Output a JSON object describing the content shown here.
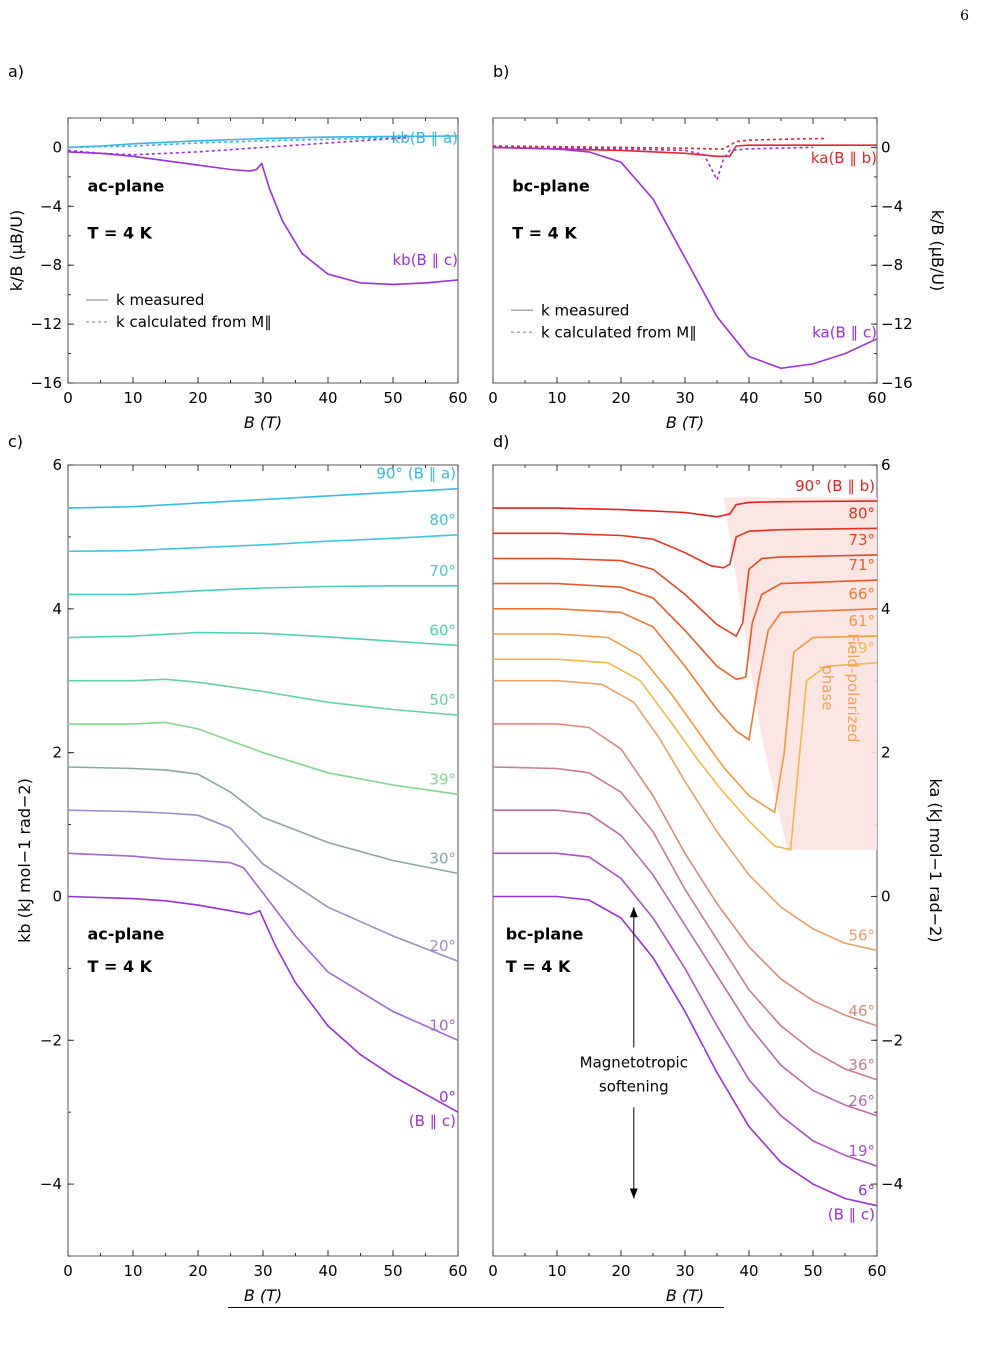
{
  "page_number": "6",
  "chart_data": [
    {
      "panel": "a)",
      "type": "line",
      "xlabel": "B (T)",
      "ylabel": "k/B (μB/U)",
      "xlim": [
        0,
        60
      ],
      "ylim": [
        -16,
        2
      ],
      "xticks": [
        "0",
        "10",
        "20",
        "30",
        "40",
        "50",
        "60"
      ],
      "yticks": [
        "0",
        "−4",
        "−8",
        "−12",
        "−16"
      ],
      "annotations": [
        "ac-plane",
        "T = 4 K"
      ],
      "legend": [
        "k measured",
        "k calculated from M∥"
      ],
      "legend_position": "bottom-left",
      "series": [
        {
          "name": "kb(B ∥ a)",
          "color": "#36b7e6",
          "style": "solid",
          "x": [
            0,
            5,
            10,
            20,
            30,
            40,
            50,
            60
          ],
          "y": [
            0,
            0.1,
            0.25,
            0.45,
            0.6,
            0.7,
            0.75,
            0.78
          ]
        },
        {
          "name": "",
          "color": "#36b7e6",
          "style": "dashed",
          "x": [
            0,
            10,
            20,
            30,
            40,
            50,
            52
          ],
          "y": [
            0,
            0.1,
            0.3,
            0.45,
            0.55,
            0.65,
            0.68
          ]
        },
        {
          "name": "kb(B ∥ c)",
          "color": "#9b30d9",
          "style": "solid",
          "x": [
            0,
            5,
            10,
            15,
            20,
            25,
            28,
            29,
            29.8,
            31,
            33,
            36,
            40,
            45,
            50,
            55,
            60
          ],
          "y": [
            -0.3,
            -0.4,
            -0.6,
            -0.9,
            -1.2,
            -1.5,
            -1.6,
            -1.5,
            -1.1,
            -2.8,
            -5,
            -7.2,
            -8.6,
            -9.2,
            -9.3,
            -9.2,
            -9.0
          ]
        },
        {
          "name": "",
          "color": "#9b30d9",
          "style": "dashed",
          "x": [
            0,
            5,
            10,
            20,
            30,
            40,
            50,
            52
          ],
          "y": [
            -0.2,
            -0.4,
            -0.5,
            -0.3,
            0,
            0.3,
            0.6,
            0.65
          ]
        }
      ]
    },
    {
      "panel": "b)",
      "type": "line",
      "xlabel": "B (T)",
      "ylabel": "k/B (μB/U)",
      "xlim": [
        0,
        60
      ],
      "ylim": [
        -16,
        2
      ],
      "xticks": [
        "0",
        "10",
        "20",
        "30",
        "40",
        "50",
        "60"
      ],
      "yticks": [
        "0",
        "−4",
        "−8",
        "−12",
        "−16"
      ],
      "annotations": [
        "bc-plane",
        "T = 4 K"
      ],
      "legend": [
        "k measured",
        "k calculated from M∥"
      ],
      "legend_position": "bottom-left",
      "series": [
        {
          "name": "ka(B ∥ b)",
          "color": "#e6242b",
          "style": "solid",
          "x": [
            0,
            10,
            20,
            30,
            35,
            37,
            38,
            40,
            45,
            60
          ],
          "y": [
            0,
            -0.1,
            -0.2,
            -0.4,
            -0.6,
            -0.6,
            0.1,
            0.15,
            0.15,
            0.15
          ]
        },
        {
          "name": "",
          "color": "#e6242b",
          "style": "dashed",
          "x": [
            0,
            10,
            20,
            30,
            34,
            36,
            38,
            40,
            45,
            50,
            52
          ],
          "y": [
            0.1,
            0.05,
            0,
            -0.05,
            -0.1,
            -0.1,
            0.4,
            0.5,
            0.55,
            0.6,
            0.6
          ]
        },
        {
          "name": "ka(B ∥ c)",
          "color": "#9b30d9",
          "style": "solid",
          "x": [
            0,
            10,
            15,
            20,
            25,
            30,
            35,
            40,
            45,
            50,
            55,
            60
          ],
          "y": [
            0,
            -0.1,
            -0.3,
            -1,
            -3.5,
            -7.5,
            -11.5,
            -14.2,
            -15,
            -14.7,
            -14,
            -13
          ]
        },
        {
          "name": "",
          "color": "#9b30d9",
          "style": "dashed",
          "x": [
            0,
            10,
            20,
            30,
            33,
            35,
            36,
            37,
            40,
            50
          ],
          "y": [
            0,
            -0.05,
            -0.1,
            -0.2,
            -0.5,
            -2.2,
            -0.8,
            -0.2,
            -0.1,
            0
          ]
        }
      ]
    },
    {
      "panel": "c)",
      "type": "line",
      "xlabel": "B (T)",
      "ylabel": "kb (kJ mol−1 rad−2)",
      "xlim": [
        0,
        60
      ],
      "ylim": [
        -5,
        6
      ],
      "xticks": [
        "0",
        "10",
        "20",
        "30",
        "40",
        "50",
        "60"
      ],
      "yticks": [
        "6",
        "4",
        "2",
        "0",
        "−2",
        "−4"
      ],
      "annotations": [
        "ac-plane",
        "T = 4 K"
      ],
      "series": [
        {
          "name": "90° (B ∥ a)",
          "color": "#33bde6",
          "x": [
            0,
            10,
            20,
            30,
            40,
            50,
            60
          ],
          "y": [
            5.4,
            5.42,
            5.47,
            5.52,
            5.57,
            5.62,
            5.67
          ]
        },
        {
          "name": "80°",
          "color": "#41c5dc",
          "x": [
            0,
            10,
            20,
            30,
            40,
            50,
            60
          ],
          "y": [
            4.8,
            4.81,
            4.85,
            4.89,
            4.94,
            4.98,
            5.03
          ]
        },
        {
          "name": "70°",
          "color": "#47ccc5",
          "x": [
            0,
            10,
            20,
            30,
            40,
            50,
            60
          ],
          "y": [
            4.2,
            4.2,
            4.25,
            4.29,
            4.31,
            4.32,
            4.32
          ]
        },
        {
          "name": "60°",
          "color": "#4fd1b3",
          "x": [
            0,
            10,
            20,
            30,
            40,
            50,
            60
          ],
          "y": [
            3.6,
            3.62,
            3.67,
            3.66,
            3.61,
            3.55,
            3.49
          ]
        },
        {
          "name": "50°",
          "color": "#66d39f",
          "x": [
            0,
            10,
            15,
            20,
            30,
            40,
            50,
            60
          ],
          "y": [
            3.0,
            3.0,
            3.02,
            2.98,
            2.85,
            2.7,
            2.6,
            2.52
          ]
        },
        {
          "name": "39°",
          "color": "#80d68a",
          "x": [
            0,
            10,
            15,
            20,
            30,
            40,
            50,
            60
          ],
          "y": [
            2.4,
            2.4,
            2.42,
            2.33,
            2.0,
            1.72,
            1.55,
            1.42
          ]
        },
        {
          "name": "30°",
          "color": "#8aa6a4",
          "x": [
            0,
            10,
            15,
            20,
            25,
            30,
            40,
            50,
            60
          ],
          "y": [
            1.8,
            1.78,
            1.76,
            1.7,
            1.45,
            1.1,
            0.75,
            0.5,
            0.32
          ]
        },
        {
          "name": "20°",
          "color": "#9a8ec4",
          "x": [
            0,
            10,
            15,
            20,
            25,
            30,
            40,
            50,
            60
          ],
          "y": [
            1.2,
            1.18,
            1.16,
            1.13,
            0.95,
            0.45,
            -0.15,
            -0.55,
            -0.9
          ]
        },
        {
          "name": "10°",
          "color": "#a366d2",
          "x": [
            0,
            10,
            15,
            20,
            25,
            27,
            30,
            35,
            40,
            50,
            60
          ],
          "y": [
            0.6,
            0.56,
            0.52,
            0.5,
            0.47,
            0.4,
            0.05,
            -0.55,
            -1.05,
            -1.6,
            -2.0
          ]
        },
        {
          "name": "0° (B ∥ c)",
          "color": "#9b30d9",
          "x": [
            0,
            10,
            15,
            20,
            25,
            28,
            29.5,
            30,
            32,
            35,
            40,
            45,
            50,
            55,
            60
          ],
          "y": [
            0,
            -0.03,
            -0.06,
            -0.12,
            -0.2,
            -0.25,
            -0.2,
            -0.3,
            -0.7,
            -1.2,
            -1.8,
            -2.2,
            -2.5,
            -2.75,
            -3.0
          ]
        }
      ]
    },
    {
      "panel": "d)",
      "type": "line",
      "xlabel": "B (T)",
      "ylabel": "ka (kJ mol−1 rad−2)",
      "xlim": [
        0,
        60
      ],
      "ylim": [
        -5,
        6
      ],
      "xticks": [
        "0",
        "10",
        "20",
        "30",
        "40",
        "50",
        "60"
      ],
      "yticks": [
        "6",
        "4",
        "2",
        "0",
        "−2",
        "−4"
      ],
      "annotations": [
        "bc-plane",
        "T = 4 K",
        "Field-polarized phase",
        "Magnetotropic softening"
      ],
      "series": [
        {
          "name": "90° (B ∥ b)",
          "color": "#e3201f",
          "x": [
            0,
            10,
            20,
            30,
            35,
            37,
            38,
            40,
            45,
            60
          ],
          "y": [
            5.4,
            5.4,
            5.38,
            5.34,
            5.28,
            5.32,
            5.45,
            5.48,
            5.49,
            5.5
          ]
        },
        {
          "name": "80°",
          "color": "#e4321f",
          "x": [
            0,
            10,
            20,
            25,
            30,
            34,
            36,
            37,
            38,
            40,
            45,
            60
          ],
          "y": [
            5.05,
            5.05,
            5.02,
            4.97,
            4.78,
            4.6,
            4.57,
            4.62,
            5.0,
            5.08,
            5.1,
            5.12
          ]
        },
        {
          "name": "73°",
          "color": "#e54722",
          "x": [
            0,
            10,
            20,
            25,
            30,
            35,
            38,
            39,
            40,
            42,
            45,
            60
          ],
          "y": [
            4.7,
            4.7,
            4.67,
            4.55,
            4.2,
            3.78,
            3.62,
            3.8,
            4.55,
            4.7,
            4.72,
            4.75
          ]
        },
        {
          "name": "71°",
          "color": "#e75b26",
          "x": [
            0,
            10,
            20,
            25,
            30,
            35,
            38,
            39.5,
            40.5,
            42,
            45,
            60
          ],
          "y": [
            4.35,
            4.35,
            4.3,
            4.15,
            3.7,
            3.2,
            3.02,
            3.05,
            3.8,
            4.2,
            4.35,
            4.4
          ]
        },
        {
          "name": "66°",
          "color": "#ec7a33",
          "x": [
            0,
            10,
            20,
            25,
            30,
            35,
            38,
            40,
            41.5,
            43,
            45,
            60
          ],
          "y": [
            4.0,
            4.0,
            3.95,
            3.75,
            3.2,
            2.6,
            2.3,
            2.18,
            3.0,
            3.7,
            3.95,
            4.0
          ]
        },
        {
          "name": "61°",
          "color": "#f29a3d",
          "x": [
            0,
            10,
            18,
            23,
            28,
            32,
            36,
            40,
            44,
            45.5,
            47,
            50,
            60
          ],
          "y": [
            3.65,
            3.65,
            3.6,
            3.35,
            2.8,
            2.3,
            1.8,
            1.4,
            1.17,
            2.0,
            3.4,
            3.6,
            3.62
          ]
        },
        {
          "name": "59°",
          "color": "#f5b847",
          "x": [
            0,
            10,
            18,
            23,
            28,
            32,
            36,
            40,
            44,
            46.5,
            47.5,
            49,
            52,
            60
          ],
          "y": [
            3.3,
            3.3,
            3.25,
            3.0,
            2.4,
            1.9,
            1.45,
            1.05,
            0.7,
            0.65,
            1.6,
            3.0,
            3.2,
            3.25
          ]
        },
        {
          "name": "56°",
          "color": "#eda063",
          "x": [
            0,
            10,
            17,
            22,
            26,
            30,
            35,
            40,
            45,
            50,
            55,
            60
          ],
          "y": [
            3.0,
            3.0,
            2.95,
            2.7,
            2.2,
            1.6,
            0.9,
            0.3,
            -0.15,
            -0.45,
            -0.65,
            -0.75
          ]
        },
        {
          "name": "46°",
          "color": "#d98a7a",
          "x": [
            0,
            10,
            15,
            20,
            25,
            30,
            35,
            40,
            45,
            50,
            55,
            60
          ],
          "y": [
            2.4,
            2.4,
            2.35,
            2.05,
            1.4,
            0.6,
            -0.1,
            -0.7,
            -1.15,
            -1.45,
            -1.65,
            -1.8
          ]
        },
        {
          "name": "36°",
          "color": "#c97b8f",
          "x": [
            0,
            10,
            15,
            20,
            25,
            30,
            35,
            40,
            45,
            50,
            55,
            60
          ],
          "y": [
            1.8,
            1.78,
            1.72,
            1.45,
            0.9,
            0.1,
            -0.6,
            -1.3,
            -1.8,
            -2.15,
            -2.4,
            -2.55
          ]
        },
        {
          "name": "26°",
          "color": "#bb6aa8",
          "x": [
            0,
            10,
            15,
            20,
            25,
            30,
            35,
            40,
            45,
            50,
            55,
            60
          ],
          "y": [
            1.2,
            1.2,
            1.15,
            0.85,
            0.3,
            -0.4,
            -1.1,
            -1.8,
            -2.35,
            -2.7,
            -2.9,
            -3.05
          ]
        },
        {
          "name": "19°",
          "color": "#a955c1",
          "x": [
            0,
            10,
            15,
            20,
            25,
            30,
            35,
            40,
            45,
            50,
            55,
            60
          ],
          "y": [
            0.6,
            0.6,
            0.55,
            0.25,
            -0.3,
            -1.0,
            -1.8,
            -2.55,
            -3.05,
            -3.4,
            -3.6,
            -3.75
          ]
        },
        {
          "name": "6° (B ∥ c)",
          "color": "#9b30d9",
          "x": [
            0,
            10,
            15,
            20,
            25,
            30,
            35,
            40,
            45,
            50,
            55,
            60
          ],
          "y": [
            0,
            0,
            -0.05,
            -0.3,
            -0.85,
            -1.6,
            -2.45,
            -3.2,
            -3.7,
            -4.0,
            -4.2,
            -4.3
          ]
        }
      ]
    }
  ]
}
